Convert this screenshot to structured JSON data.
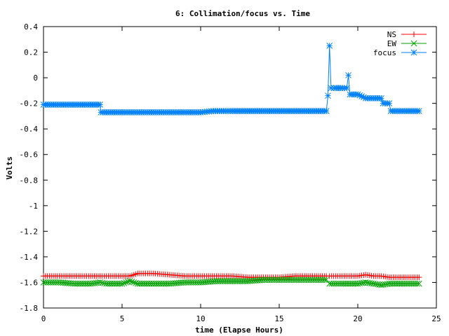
{
  "chart_data": {
    "type": "line",
    "title": "6: Collimation/focus vs. Time",
    "xlabel": "time (Elapse Hours)",
    "ylabel": "Volts",
    "xlim": [
      0,
      25
    ],
    "ylim": [
      -1.8,
      0.4
    ],
    "xticks": [
      0,
      5,
      10,
      15,
      20,
      25
    ],
    "xtick_labels": [
      "0",
      "5",
      "10",
      "15",
      "20",
      "25"
    ],
    "yticks": [
      0.4,
      0.2,
      0,
      -0.2,
      -0.4,
      -0.6,
      -0.8,
      -1,
      -1.2,
      -1.4,
      -1.6,
      -1.8
    ],
    "ytick_labels": [
      "0.4",
      "0.2",
      "0",
      "-0.2",
      "-0.4",
      "-0.6",
      "-0.8",
      "-1",
      "-1.2",
      "-1.4",
      "-1.6",
      "-1.8"
    ],
    "grid": false,
    "legend_position": "top-right",
    "series": [
      {
        "name": "NS",
        "color": "#ff0000",
        "marker": "plus",
        "x": [
          0,
          1,
          2,
          3,
          3.6,
          4,
          5,
          5.5,
          6,
          7,
          8,
          9,
          10,
          11,
          12,
          13,
          14,
          15,
          16,
          17,
          18,
          18.2,
          19,
          20,
          20.5,
          21,
          21.5,
          22,
          23,
          23.9
        ],
        "y": [
          -1.55,
          -1.55,
          -1.55,
          -1.55,
          -1.55,
          -1.55,
          -1.55,
          -1.55,
          -1.53,
          -1.53,
          -1.54,
          -1.55,
          -1.55,
          -1.55,
          -1.55,
          -1.56,
          -1.56,
          -1.56,
          -1.55,
          -1.55,
          -1.55,
          -1.55,
          -1.55,
          -1.55,
          -1.54,
          -1.55,
          -1.55,
          -1.56,
          -1.56,
          -1.56
        ]
      },
      {
        "name": "EW",
        "color": "#00a000",
        "marker": "cross",
        "x": [
          0,
          1,
          2,
          3,
          3.6,
          4,
          5,
          5.5,
          6,
          7,
          8,
          9,
          10,
          11,
          12,
          13,
          14,
          15,
          16,
          17,
          18,
          18.2,
          19,
          20,
          20.5,
          21,
          21.5,
          22,
          23,
          23.9
        ],
        "y": [
          -1.6,
          -1.6,
          -1.61,
          -1.61,
          -1.6,
          -1.61,
          -1.61,
          -1.59,
          -1.61,
          -1.61,
          -1.61,
          -1.6,
          -1.6,
          -1.59,
          -1.59,
          -1.59,
          -1.58,
          -1.58,
          -1.58,
          -1.58,
          -1.58,
          -1.61,
          -1.61,
          -1.61,
          -1.6,
          -1.61,
          -1.62,
          -1.61,
          -1.61,
          -1.61
        ]
      },
      {
        "name": "focus",
        "color": "#0080ff",
        "marker": "star",
        "x": [
          0,
          1,
          2,
          3,
          3.6,
          3.65,
          5,
          7,
          9,
          10,
          10.8,
          12,
          14,
          16,
          18,
          18.1,
          18.2,
          18.3,
          18.5,
          19,
          19.3,
          19.4,
          19.5,
          20,
          20.5,
          21,
          21.5,
          21.6,
          22,
          22.1,
          23,
          23.9
        ],
        "y": [
          -0.21,
          -0.21,
          -0.21,
          -0.21,
          -0.21,
          -0.27,
          -0.27,
          -0.27,
          -0.27,
          -0.27,
          -0.26,
          -0.26,
          -0.26,
          -0.26,
          -0.26,
          -0.14,
          0.25,
          -0.08,
          -0.08,
          -0.08,
          -0.08,
          0.02,
          -0.13,
          -0.13,
          -0.16,
          -0.16,
          -0.16,
          -0.2,
          -0.2,
          -0.26,
          -0.26,
          -0.26
        ]
      }
    ]
  }
}
